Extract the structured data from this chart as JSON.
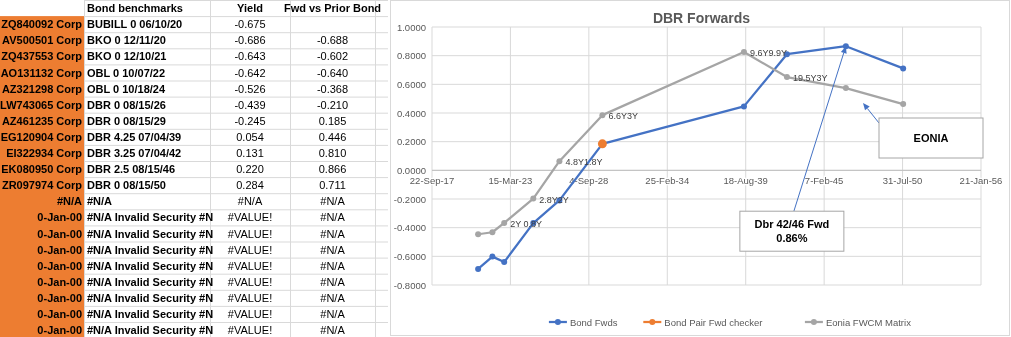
{
  "chart_data": [
    {
      "type": "other",
      "categories": [
        null,
        "Bond benchmarks",
        "Yield",
        "Fwd vs Prior Bond"
      ],
      "annotations": [
        "ZQ840092 Corp",
        "BUBILL 0 06/10/20",
        "-0.675",
        null,
        "AV500501 Corp",
        "BKO 0 12/11/20",
        "-0.686",
        "-0.688",
        "ZQ437553 Corp",
        "BKO 0 12/10/21",
        "-0.643",
        "-0.602",
        "AO131132 Corp",
        "OBL 0 10/07/22",
        "-0.642",
        "-0.640",
        "AZ321298 Corp",
        "OBL 0 10/18/24",
        "-0.526",
        "-0.368",
        "LW743065 Corp",
        "DBR 0 08/15/26",
        "-0.439",
        "-0.210",
        "AZ461235 Corp",
        "DBR 0 08/15/29",
        "-0.245",
        "0.185",
        "EG120904 Corp",
        "DBR 4.25 07/04/39",
        "0.054",
        "0.446",
        "EI322934 Corp",
        "DBR 3.25 07/04/42",
        "0.131",
        "0.810",
        "EK080950 Corp",
        "DBR 2.5 08/15/46",
        "0.220",
        "0.866",
        "ZR097974 Corp",
        "DBR 0 08/15/50",
        "0.284",
        "0.711",
        "#N/A",
        "#N/A",
        "#N/A",
        "#N/A",
        "0-Jan-00",
        "#N/A Invalid Security #N",
        "#VALUE!",
        "#N/A",
        "0-Jan-00",
        "#N/A Invalid Security #N",
        "#VALUE!",
        "#N/A",
        "0-Jan-00",
        "#N/A Invalid Security #N",
        "#VALUE!",
        "#N/A",
        "0-Jan-00",
        "#N/A Invalid Security #N",
        "#VALUE!",
        "#N/A",
        "0-Jan-00",
        "#N/A Invalid Security #N",
        "#VALUE!",
        "#N/A",
        "0-Jan-00",
        "#N/A Invalid Security #N",
        "#VALUE!",
        "#N/A",
        "0-Jan-00",
        "#N/A Invalid Security #N",
        "#VALUE!",
        "#N/A",
        "0-Jan-00",
        "#N/A Invalid Security #N",
        "#VALUE!",
        "#N/A"
      ]
    },
    {
      "type": "line",
      "title": "DBR Forwards",
      "x": [
        "2020-12-11",
        "2021-12-10",
        "2022-10-07",
        "2024-10-18",
        "2026-08-15",
        "2029-08-15",
        "2039-07-04",
        "2042-07-04",
        "2046-08-15",
        "2050-08-15"
      ],
      "series": [
        {
          "name": "Bond Fwds",
          "color": "#4472c4",
          "values": [
            -0.688,
            -0.602,
            -0.64,
            -0.368,
            -0.21,
            0.185,
            0.446,
            0.81,
            0.866,
            0.711
          ]
        },
        {
          "name": "Bond Pair Fwd checker",
          "color": "#ed7d31",
          "x": [
            "2029-08-15"
          ],
          "values": [
            0.185
          ]
        },
        {
          "name": "Eonia FWCM Matrix",
          "color": "#a5a5a5",
          "values": [
            -0.446,
            -0.432,
            -0.367,
            -0.197,
            0.064,
            0.385,
            0.825,
            0.651,
            0.574,
            0.462
          ]
        }
      ],
      "xlim": [
        "2017-09-22",
        "2056-01-21"
      ],
      "xticks": [
        {
          "value": "2017-09-22",
          "label": "22-Sep-17"
        },
        {
          "value": "2023-03-15",
          "label": "15-Mar-23"
        },
        {
          "value": "2028-09-04",
          "label": "4-Sep-28"
        },
        {
          "value": "2034-02-25",
          "label": "25-Feb-34"
        },
        {
          "value": "2039-08-18",
          "label": "18-Aug-39"
        },
        {
          "value": "2045-02-07",
          "label": "7-Feb-45"
        },
        {
          "value": "2050-07-31",
          "label": "31-Jul-50"
        },
        {
          "value": "2056-01-21",
          "label": "21-Jan-56"
        }
      ],
      "ylim": [
        -0.8,
        1.0
      ],
      "yticks": [
        {
          "value": -0.8,
          "label": "-0.8000"
        },
        {
          "value": -0.6,
          "label": "-0.6000"
        },
        {
          "value": -0.4,
          "label": "-0.4000"
        },
        {
          "value": -0.2,
          "label": "-0.2000"
        },
        {
          "value": 0,
          "label": "0.0000"
        },
        {
          "value": 0.2,
          "label": "0.2000"
        },
        {
          "value": 0.4,
          "label": "0.4000"
        },
        {
          "value": 0.6,
          "label": "0.6000"
        },
        {
          "value": 0.8,
          "label": "0.8000"
        },
        {
          "value": 1.0,
          "label": "1.0000"
        }
      ],
      "annotations": [
        {
          "text": "2Y 0.8Y",
          "x": "2022-10-07",
          "y": -0.367
        },
        {
          "text": "2.8Y2Y",
          "x": "2024-10-18",
          "y": -0.197
        },
        {
          "text": "4.8Y1.8Y",
          "x": "2026-08-15",
          "y": 0.064
        },
        {
          "text": "6.6Y3Y",
          "x": "2029-08-15",
          "y": 0.385
        },
        {
          "text": "9.6Y9.9Y",
          "x": "2039-07-04",
          "y": 0.825
        },
        {
          "text": "19.5Y3Y",
          "x": "2042-07-04",
          "y": 0.651
        },
        "EONIA",
        {
          "text": "Dbr 42/46 Fwd\n0.86%",
          "x": "2046-08-15",
          "y": 0.866
        }
      ],
      "grid": true,
      "legend": "bottom",
      "marker": "circle",
      "line_style": "solid"
    }
  ]
}
